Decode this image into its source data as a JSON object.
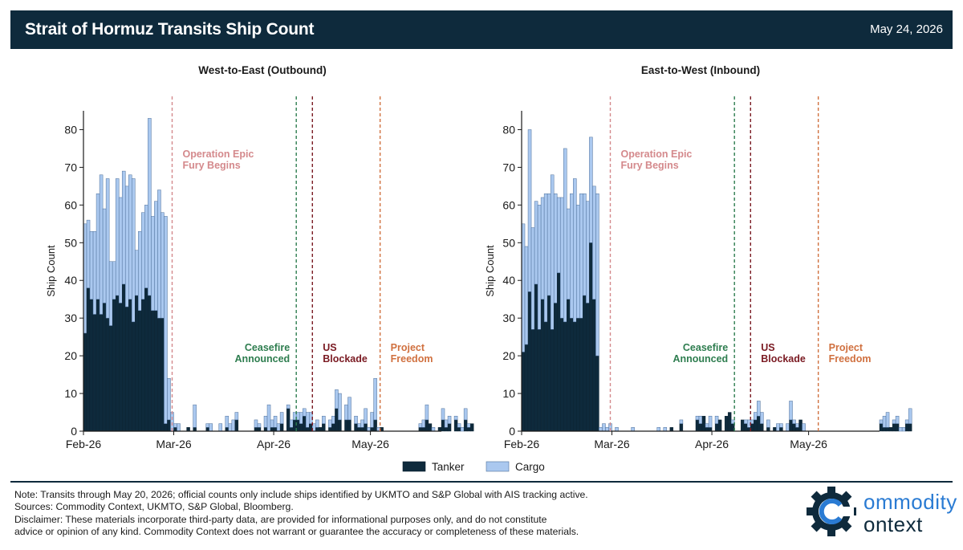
{
  "header": {
    "title": "Strait of Hormuz Transits Ship Count",
    "date": "May 24, 2026"
  },
  "legend": {
    "tanker": "Tanker",
    "cargo": "Cargo"
  },
  "colors": {
    "tanker": "#0e2a3c",
    "cargo": "#aac8ef",
    "fury": "#d4898c",
    "ceasefire": "#2e7d4f",
    "blockade": "#7a1a22",
    "freedom": "#d0703f",
    "header_bg": "#0e2a3c"
  },
  "chart_data": [
    {
      "type": "bar",
      "stacked": true,
      "title": "West-to-East (Outbound)",
      "ylabel": "Ship Count",
      "ylim": [
        0,
        85
      ],
      "yticks": [
        0,
        10,
        20,
        30,
        40,
        50,
        60,
        70,
        80
      ],
      "xlim": [
        "2026-02-01",
        "2026-05-23"
      ],
      "xticks": [
        {
          "label": "Feb-26",
          "date": "2026-02-01"
        },
        {
          "label": "Mar-26",
          "date": "2026-03-01"
        },
        {
          "label": "Apr-26",
          "date": "2026-04-01"
        },
        {
          "label": "May-26",
          "date": "2026-05-01"
        }
      ],
      "start_date": "2026-02-01",
      "series": [
        {
          "name": "Tanker",
          "values": [
            26,
            38,
            35,
            31,
            35,
            31,
            34,
            30,
            28,
            35,
            36,
            34,
            39,
            33,
            35,
            29,
            36,
            32,
            35,
            38,
            36,
            32,
            32,
            30,
            30,
            2,
            3,
            0,
            1,
            0,
            0,
            0,
            1,
            0,
            1,
            0,
            0,
            0,
            1,
            0,
            0,
            0,
            0,
            0,
            1,
            0,
            0,
            3,
            0,
            0,
            0,
            0,
            0,
            1,
            1,
            0,
            1,
            0,
            1,
            1,
            0,
            2,
            0,
            6,
            1,
            3,
            3,
            2,
            4,
            1,
            2,
            0,
            1,
            1,
            2,
            0,
            1,
            2,
            6,
            3,
            0,
            3,
            3,
            0,
            2,
            1,
            1,
            2,
            0,
            1,
            3,
            0,
            1,
            0,
            0,
            0,
            0,
            0,
            0,
            0,
            0,
            0,
            0,
            0,
            1,
            1,
            3,
            2,
            0,
            0,
            1,
            3,
            1,
            2,
            0,
            3,
            1,
            0,
            3,
            1,
            2
          ]
        },
        {
          "name": "Cargo",
          "values": [
            29,
            18,
            18,
            22,
            28,
            37,
            25,
            37,
            17,
            10,
            31,
            28,
            30,
            32,
            33,
            38,
            12,
            21,
            23,
            22,
            47,
            25,
            29,
            34,
            28,
            55,
            11,
            5,
            1,
            2,
            0,
            0,
            0,
            0,
            6,
            0,
            0,
            0,
            1,
            2,
            0,
            0,
            2,
            0,
            3,
            2,
            3,
            2,
            0,
            0,
            0,
            0,
            0,
            2,
            1,
            0,
            3,
            7,
            2,
            3,
            2,
            3,
            0,
            1,
            2,
            2,
            2,
            3,
            2,
            4,
            3,
            2,
            2,
            0,
            2,
            0,
            2,
            2,
            5,
            7,
            0,
            4,
            6,
            0,
            2,
            1,
            2,
            4,
            1,
            4,
            11,
            1,
            0,
            0,
            0,
            0,
            0,
            0,
            0,
            0,
            0,
            0,
            0,
            0,
            1,
            2,
            4,
            0,
            1,
            0,
            0,
            3,
            2,
            2,
            0,
            1,
            1,
            1,
            3,
            1,
            0
          ]
        }
      ],
      "events": [
        {
          "label": "Operation Epic Fury Begins",
          "date": "2026-02-28",
          "color": "#d4898c"
        },
        {
          "label": "Ceasefire Announced",
          "date": "2026-04-08",
          "color": "#2e7d4f"
        },
        {
          "label": "US Blockade",
          "date": "2026-04-13",
          "color": "#7a1a22"
        },
        {
          "label": "Project Freedom",
          "date": "2026-05-04",
          "color": "#d0703f"
        }
      ]
    },
    {
      "type": "bar",
      "stacked": true,
      "title": "East-to-West (Inbound)",
      "ylabel": "Ship Count",
      "ylim": [
        0,
        85
      ],
      "yticks": [
        0,
        10,
        20,
        30,
        40,
        50,
        60,
        70,
        80
      ],
      "xlim": [
        "2026-02-01",
        "2026-05-23"
      ],
      "xticks": [
        {
          "label": "Feb-26",
          "date": "2026-02-01"
        },
        {
          "label": "Mar-26",
          "date": "2026-03-01"
        },
        {
          "label": "Apr-26",
          "date": "2026-04-01"
        },
        {
          "label": "May-26",
          "date": "2026-05-01"
        }
      ],
      "start_date": "2026-02-01",
      "series": [
        {
          "name": "Tanker",
          "values": [
            21,
            23,
            37,
            27,
            39,
            27,
            35,
            29,
            36,
            27,
            34,
            42,
            30,
            29,
            35,
            30,
            29,
            30,
            30,
            36,
            34,
            50,
            35,
            20,
            0,
            0,
            0,
            0,
            0,
            0,
            0,
            0,
            0,
            0,
            0,
            0,
            0,
            0,
            0,
            0,
            0,
            0,
            0,
            0,
            0,
            0,
            1,
            0,
            0,
            2,
            0,
            0,
            0,
            0,
            3,
            2,
            4,
            1,
            1,
            0,
            2,
            3,
            0,
            4,
            5,
            2,
            0,
            0,
            3,
            2,
            1,
            2,
            3,
            4,
            2,
            0,
            1,
            0,
            1,
            0,
            1,
            0,
            0,
            3,
            2,
            1,
            3,
            0,
            0,
            0,
            0,
            0,
            0,
            0,
            0,
            0,
            0,
            0,
            0,
            0,
            0,
            0,
            0,
            0,
            0,
            0,
            0,
            0,
            0,
            0,
            0,
            2,
            1,
            1,
            1,
            2,
            2,
            0,
            0,
            2,
            2
          ]
        },
        {
          "name": "Cargo",
          "values": [
            34,
            26,
            43,
            27,
            22,
            33,
            27,
            34,
            27,
            41,
            29,
            20,
            32,
            46,
            24,
            33,
            38,
            30,
            33,
            27,
            27,
            28,
            30,
            43,
            1,
            2,
            1,
            2,
            0,
            1,
            0,
            0,
            0,
            0,
            1,
            0,
            0,
            0,
            0,
            0,
            0,
            0,
            1,
            0,
            1,
            0,
            0,
            0,
            0,
            1,
            0,
            0,
            0,
            0,
            1,
            2,
            0,
            1,
            3,
            0,
            2,
            0,
            0,
            0,
            0,
            1,
            0,
            0,
            0,
            1,
            2,
            1,
            2,
            4,
            3,
            0,
            2,
            0,
            0,
            2,
            1,
            0,
            2,
            5,
            1,
            1,
            0,
            2,
            0,
            0,
            0,
            0,
            0,
            0,
            0,
            0,
            0,
            0,
            0,
            0,
            0,
            0,
            0,
            0,
            0,
            0,
            0,
            0,
            0,
            0,
            0,
            1,
            3,
            4,
            0,
            1,
            2,
            1,
            1,
            1,
            4
          ]
        }
      ],
      "events": [
        {
          "label": "Operation Epic Fury Begins",
          "date": "2026-02-28",
          "color": "#d4898c"
        },
        {
          "label": "Ceasefire Announced",
          "date": "2026-04-08",
          "color": "#2e7d4f"
        },
        {
          "label": "US Blockade",
          "date": "2026-04-13",
          "color": "#7a1a22"
        },
        {
          "label": "Project Freedom",
          "date": "2026-05-04",
          "color": "#d0703f"
        }
      ]
    }
  ],
  "notes": {
    "line1": "Note: Transits through May 20, 2026; official counts only include ships identified by UKMTO and S&P Global with AIS tracking active.",
    "line2": "Sources: Commodity Context, UKMTO, S&P Global, Bloomberg.",
    "line3": "Disclaimer: These materials incorporate third-party data, are provided for informational purposes only, and do not constitute",
    "line4": "advice or opinion of any kind. Commodity Context does not warrant or guarantee the accuracy or completeness of these materials."
  },
  "logo": {
    "word1": "ommodity",
    "word2": "ontext"
  }
}
